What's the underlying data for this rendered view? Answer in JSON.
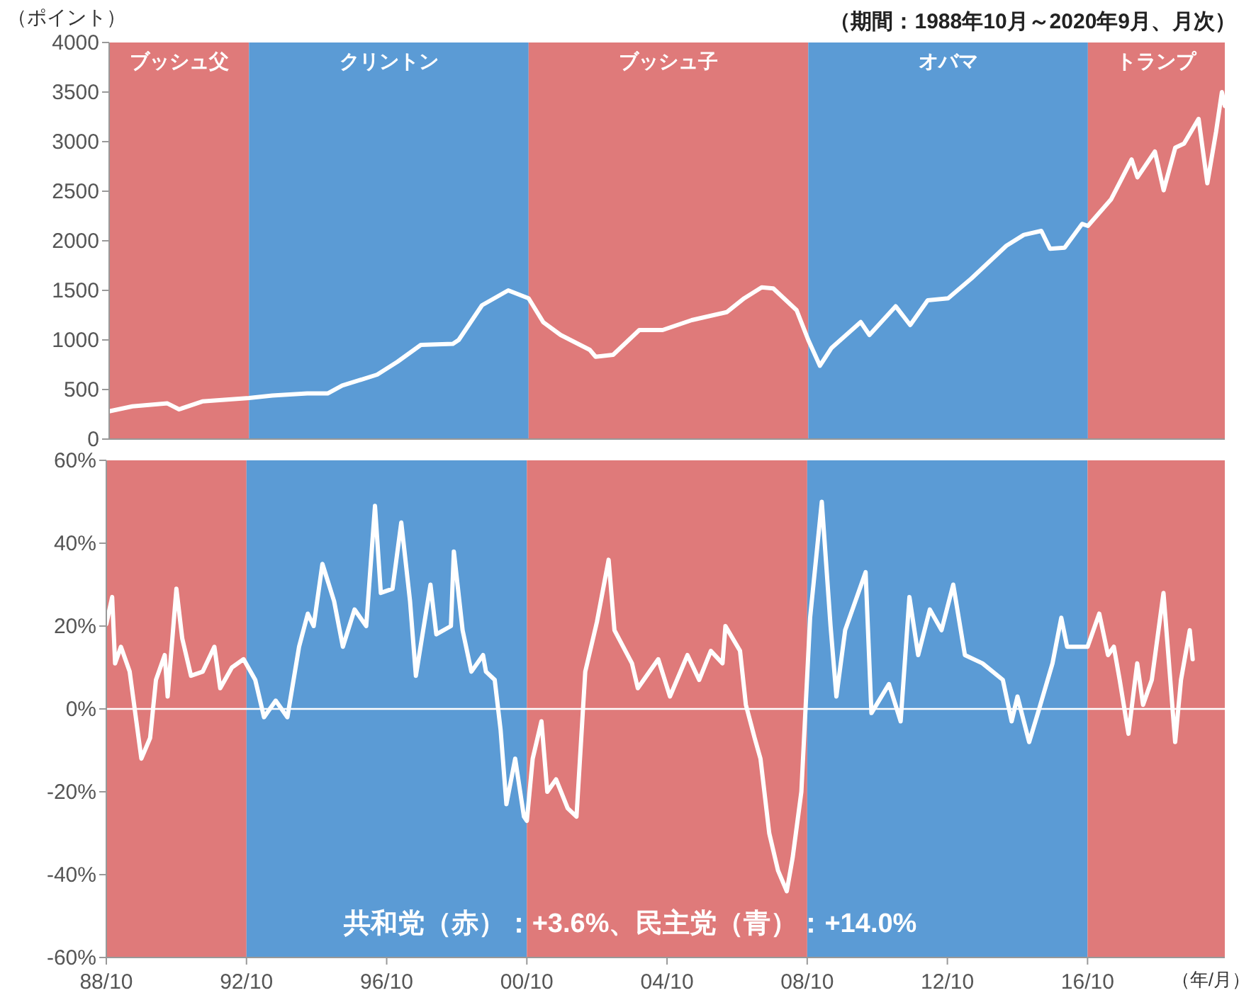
{
  "chart_data": [
    {
      "type": "line",
      "subtitle": "（期間：1988年10月～2020年9月、月次）",
      "ylabel": "（ポイント）",
      "tick_labels": "y",
      "xlim": [
        "1988-10",
        "2020-09"
      ],
      "ylim": [
        0,
        4000
      ],
      "yticks": [
        0,
        500,
        1000,
        1500,
        2000,
        2500,
        3000,
        3500,
        4000
      ],
      "bands": [
        {
          "axis": "x",
          "from": "1988-10",
          "to": "1992-10",
          "label": "ブッシュ父",
          "color": "#df7a7a"
        },
        {
          "axis": "x",
          "from": "1992-10",
          "to": "2000-10",
          "label": "クリントン",
          "color": "#5b9bd5"
        },
        {
          "axis": "x",
          "from": "2000-10",
          "to": "2008-10",
          "label": "ブッシュ子",
          "color": "#df7a7a"
        },
        {
          "axis": "x",
          "from": "2008-10",
          "to": "2016-10",
          "label": "オバマ",
          "color": "#5b9bd5"
        },
        {
          "axis": "x",
          "from": "2016-10",
          "to": "2020-09",
          "label": "トランプ",
          "color": "#df7a7a"
        }
      ],
      "x": [
        "1988-10",
        "1989-06",
        "1990-06",
        "1990-10",
        "1991-06",
        "1992-10",
        "1993-06",
        "1994-06",
        "1995-01",
        "1995-06",
        "1996-06",
        "1997-01",
        "1997-09",
        "1998-08",
        "1998-10",
        "1999-06",
        "2000-03",
        "2000-10",
        "2001-03",
        "2001-09",
        "2002-07",
        "2002-09",
        "2003-03",
        "2003-12",
        "2004-08",
        "2005-06",
        "2006-06",
        "2006-12",
        "2007-06",
        "2007-10",
        "2008-06",
        "2008-10",
        "2009-02",
        "2009-06",
        "2010-04",
        "2010-07",
        "2011-04",
        "2011-09",
        "2012-03",
        "2012-10",
        "2013-06",
        "2014-06",
        "2014-12",
        "2015-06",
        "2015-09",
        "2016-02",
        "2016-08",
        "2016-10",
        "2017-06",
        "2018-01",
        "2018-03",
        "2018-09",
        "2018-12",
        "2019-04",
        "2019-07",
        "2019-12",
        "2020-03",
        "2020-06",
        "2020-08",
        "2020-09"
      ],
      "series": [
        {
          "color": "#ffffff",
          "values": [
            280,
            330,
            360,
            300,
            380,
            415,
            440,
            460,
            460,
            540,
            650,
            780,
            950,
            960,
            1000,
            1350,
            1500,
            1420,
            1180,
            1050,
            900,
            830,
            850,
            1100,
            1100,
            1200,
            1280,
            1420,
            1530,
            1520,
            1300,
            1000,
            740,
            920,
            1180,
            1050,
            1340,
            1150,
            1400,
            1420,
            1620,
            1950,
            2060,
            2100,
            1920,
            1930,
            2170,
            2150,
            2420,
            2820,
            2640,
            2900,
            2510,
            2940,
            2980,
            3230,
            2580,
            3100,
            3500,
            3360
          ]
        }
      ]
    },
    {
      "type": "line",
      "xlabel": "（年/月）",
      "annotations": [
        "共和党（赤）：+3.6%、民主党（青）：+14.0%"
      ],
      "xlim": [
        "1988-10",
        "2020-09"
      ],
      "xticks": [
        {
          "value": "1988-10",
          "label": "88/10"
        },
        {
          "value": "1992-10",
          "label": "92/10"
        },
        {
          "value": "1996-10",
          "label": "96/10"
        },
        {
          "value": "2000-10",
          "label": "00/10"
        },
        {
          "value": "2004-10",
          "label": "04/10"
        },
        {
          "value": "2008-10",
          "label": "08/10"
        },
        {
          "value": "2012-10",
          "label": "12/10"
        },
        {
          "value": "2016-10",
          "label": "16/10"
        }
      ],
      "ylim": [
        -60,
        60
      ],
      "yticks": [
        {
          "value": -60,
          "label": "-60%"
        },
        {
          "value": -40,
          "label": "-40%"
        },
        {
          "value": -20,
          "label": "-20%"
        },
        {
          "value": 0,
          "label": "0%"
        },
        {
          "value": 20,
          "label": "20%"
        },
        {
          "value": 40,
          "label": "40%"
        },
        {
          "value": 60,
          "label": "60%"
        }
      ],
      "bands": [
        {
          "axis": "x",
          "from": "1988-10",
          "to": "1992-10",
          "color": "#df7a7a"
        },
        {
          "axis": "x",
          "from": "1992-10",
          "to": "2000-10",
          "color": "#5b9bd5"
        },
        {
          "axis": "x",
          "from": "2000-10",
          "to": "2008-10",
          "color": "#df7a7a"
        },
        {
          "axis": "x",
          "from": "2008-10",
          "to": "2016-10",
          "color": "#5b9bd5"
        },
        {
          "axis": "x",
          "from": "2016-10",
          "to": "2020-09",
          "color": "#df7a7a"
        }
      ],
      "ref_lines": [
        {
          "axis": "y",
          "value": 0,
          "color": "#ffffff"
        }
      ],
      "x": [
        "1988-10",
        "1988-12",
        "1989-01",
        "1989-03",
        "1989-06",
        "1989-10",
        "1990-01",
        "1990-03",
        "1990-06",
        "1990-07",
        "1990-10",
        "1990-12",
        "1991-03",
        "1991-07",
        "1991-11",
        "1992-01",
        "1992-05",
        "1992-09",
        "1993-01",
        "1993-04",
        "1993-08",
        "1993-12",
        "1994-04",
        "1994-07",
        "1994-09",
        "1994-12",
        "1995-04",
        "1995-07",
        "1995-11",
        "1996-03",
        "1996-06",
        "1996-08",
        "1996-12",
        "1997-03",
        "1997-06",
        "1997-08",
        "1998-01",
        "1998-03",
        "1998-08",
        "1998-09",
        "1998-12",
        "1999-03",
        "1999-07",
        "1999-08",
        "1999-11",
        "2000-01",
        "2000-03",
        "2000-06",
        "2000-09",
        "2000-10",
        "2000-12",
        "2001-03",
        "2001-05",
        "2001-08",
        "2001-12",
        "2002-03",
        "2002-06",
        "2002-10",
        "2003-02",
        "2003-04",
        "2003-10",
        "2003-12",
        "2004-07",
        "2004-11",
        "2005-05",
        "2005-09",
        "2006-01",
        "2006-05",
        "2006-06",
        "2006-11",
        "2007-01",
        "2007-04",
        "2007-06",
        "2007-09",
        "2007-12",
        "2008-03",
        "2008-05",
        "2008-08",
        "2008-11",
        "2009-03",
        "2009-06",
        "2009-08",
        "2009-11",
        "2010-06",
        "2010-08",
        "2011-02",
        "2011-06",
        "2011-09",
        "2011-12",
        "2012-04",
        "2012-08",
        "2012-12",
        "2013-04",
        "2013-10",
        "2014-05",
        "2014-08",
        "2014-10",
        "2015-02",
        "2015-05",
        "2015-10",
        "2016-01",
        "2016-03",
        "2016-10",
        "2017-02",
        "2017-05",
        "2017-07",
        "2017-09",
        "2017-12",
        "2018-03",
        "2018-05",
        "2018-08",
        "2018-12",
        "2019-04",
        "2019-06",
        "2019-09",
        "2019-10"
      ],
      "series": [
        {
          "color": "#ffffff",
          "values": [
            20.5,
            27,
            11,
            15,
            9,
            -12,
            -7,
            7,
            13,
            3,
            29,
            17,
            8,
            9,
            15,
            5,
            10,
            12,
            7,
            -2,
            2,
            -2,
            15,
            23,
            20,
            35,
            26,
            15,
            24,
            20,
            49,
            28,
            29,
            45,
            26,
            8,
            30,
            18,
            20,
            38,
            19,
            9,
            13,
            9,
            7,
            -5,
            -23,
            -12,
            -26,
            -27,
            -12,
            -3,
            -20,
            -17,
            -24,
            -26,
            9,
            21,
            36,
            19,
            11,
            5,
            12,
            3,
            13,
            7,
            14,
            11,
            20,
            14,
            1,
            -7,
            -12,
            -30,
            -39,
            -44,
            -36,
            -20,
            22,
            50,
            20,
            3,
            19,
            33,
            -1,
            6,
            -3,
            27,
            13,
            24,
            19,
            30,
            13,
            11,
            7,
            -3,
            3,
            -8,
            -1,
            11,
            22,
            15,
            15,
            23,
            13,
            15,
            7,
            -6,
            11,
            1,
            7,
            28,
            -8,
            7,
            19,
            12
          ]
        }
      ]
    }
  ]
}
